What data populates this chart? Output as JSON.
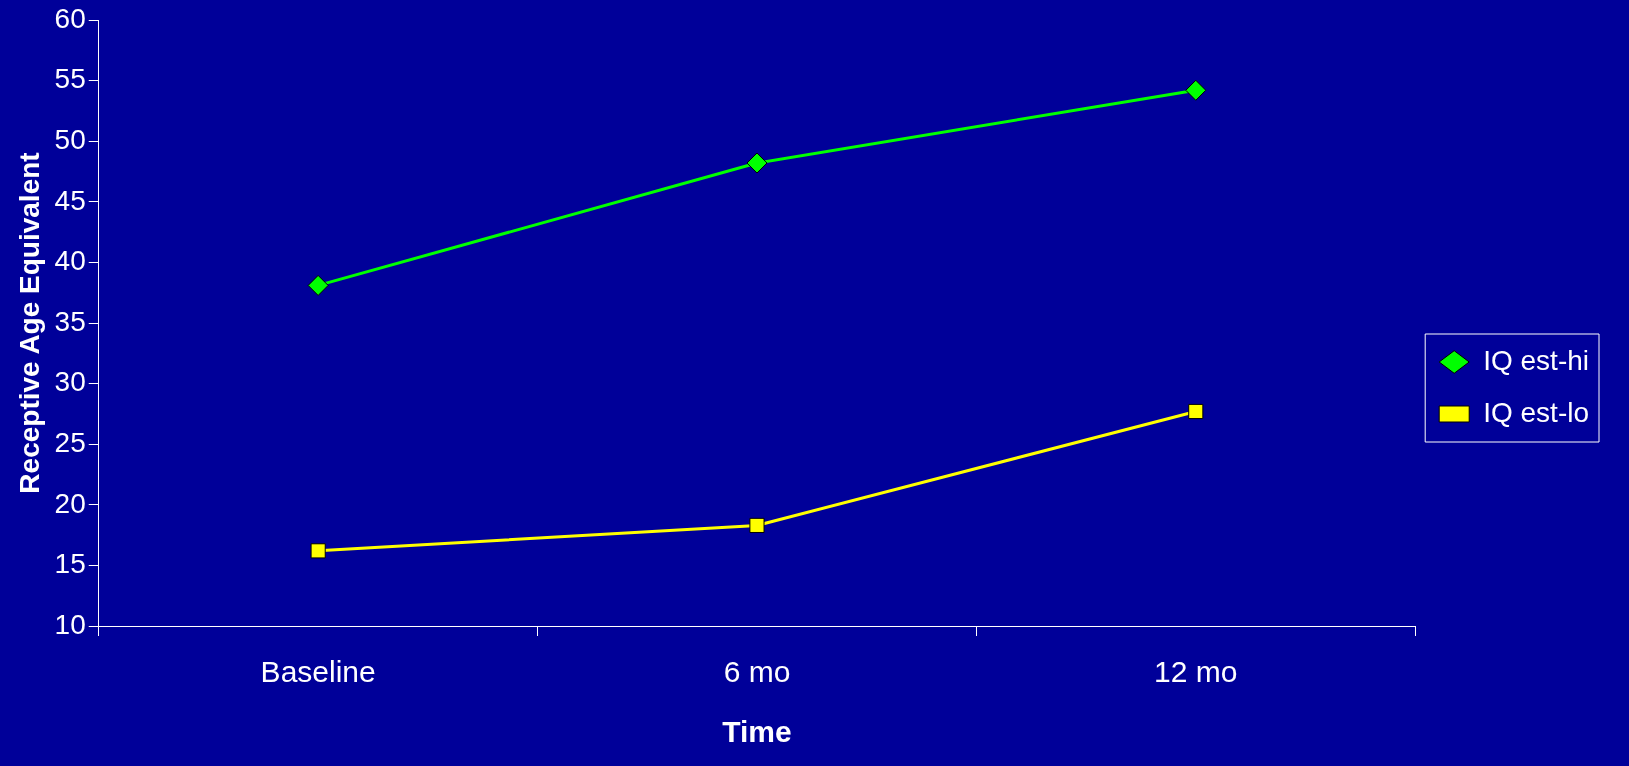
{
  "chart_data": {
    "type": "line",
    "xlabel": "Time",
    "ylabel": "Receptive Age Equivalent",
    "categories": [
      "Baseline",
      "6 mo",
      "12 mo"
    ],
    "series": [
      {
        "name": "IQ est-hi",
        "color": "#00ff00",
        "marker": "diamond",
        "values": [
          38.1,
          48.2,
          54.2
        ]
      },
      {
        "name": "IQ est-lo",
        "color": "#ffff00",
        "marker": "square",
        "values": [
          16.2,
          18.3,
          27.7
        ]
      }
    ],
    "ylim": [
      10,
      60
    ],
    "yticks": [
      10,
      15,
      20,
      25,
      30,
      35,
      40,
      45,
      50,
      55,
      60
    ],
    "grid": false,
    "legend": "right"
  }
}
